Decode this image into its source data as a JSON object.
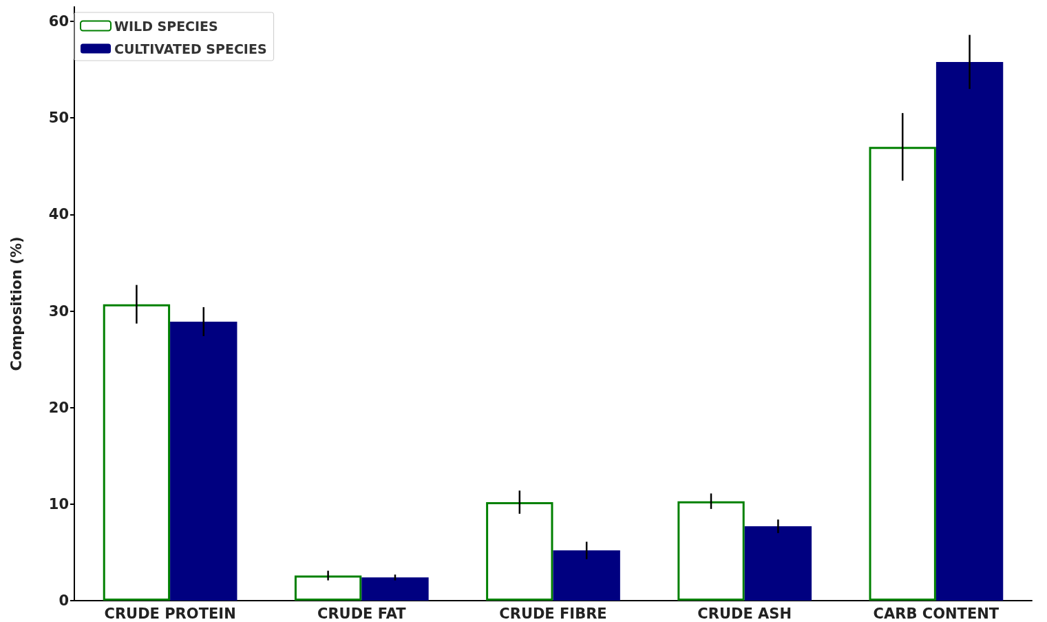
{
  "chart_data": {
    "type": "bar",
    "ylabel": "Composition (%)",
    "categories": [
      "CRUDE PROTEIN",
      "CRUDE FAT",
      "CRUDE FIBRE",
      "CRUDE ASH",
      "CARB CONTENT"
    ],
    "series": [
      {
        "name": "WILD SPECIES",
        "color": "#008000",
        "values": [
          30.7,
          2.6,
          10.2,
          10.3,
          47.0
        ],
        "errors": [
          2.0,
          0.5,
          1.2,
          0.8,
          3.5
        ]
      },
      {
        "name": "CULTIVATED SPECIES",
        "color": "#000080",
        "values": [
          28.9,
          2.4,
          5.2,
          7.7,
          55.8
        ],
        "errors": [
          1.5,
          0.3,
          0.9,
          0.7,
          2.8
        ]
      }
    ],
    "ylim": [
      0,
      61.5
    ],
    "yticks": [
      0,
      10,
      20,
      30,
      40,
      50,
      60
    ],
    "grid": false,
    "legend": "top left"
  }
}
